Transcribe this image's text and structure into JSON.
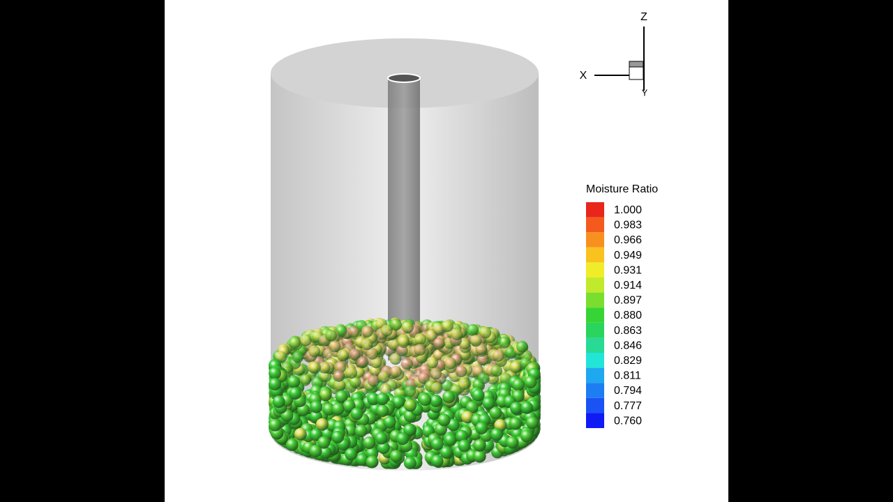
{
  "triad": {
    "z": "Z",
    "x": "X",
    "y": "Y"
  },
  "legend": {
    "title": "Moisture Ratio",
    "items": [
      {
        "label": "1.000",
        "color": "#e8261c"
      },
      {
        "label": "0.983",
        "color": "#f45a1e"
      },
      {
        "label": "0.966",
        "color": "#f8901f"
      },
      {
        "label": "0.949",
        "color": "#f9c21f"
      },
      {
        "label": "0.931",
        "color": "#f0ec2a"
      },
      {
        "label": "0.914",
        "color": "#c0ea2b"
      },
      {
        "label": "0.897",
        "color": "#7ade2e"
      },
      {
        "label": "0.880",
        "color": "#36d434"
      },
      {
        "label": "0.863",
        "color": "#2ad55e"
      },
      {
        "label": "0.846",
        "color": "#28da94"
      },
      {
        "label": "0.829",
        "color": "#22e5d8"
      },
      {
        "label": "0.811",
        "color": "#1ea8ef"
      },
      {
        "label": "0.794",
        "color": "#1d7df2"
      },
      {
        "label": "0.777",
        "color": "#1a52f5"
      },
      {
        "label": "0.760",
        "color": "#0f1af5"
      }
    ]
  }
}
